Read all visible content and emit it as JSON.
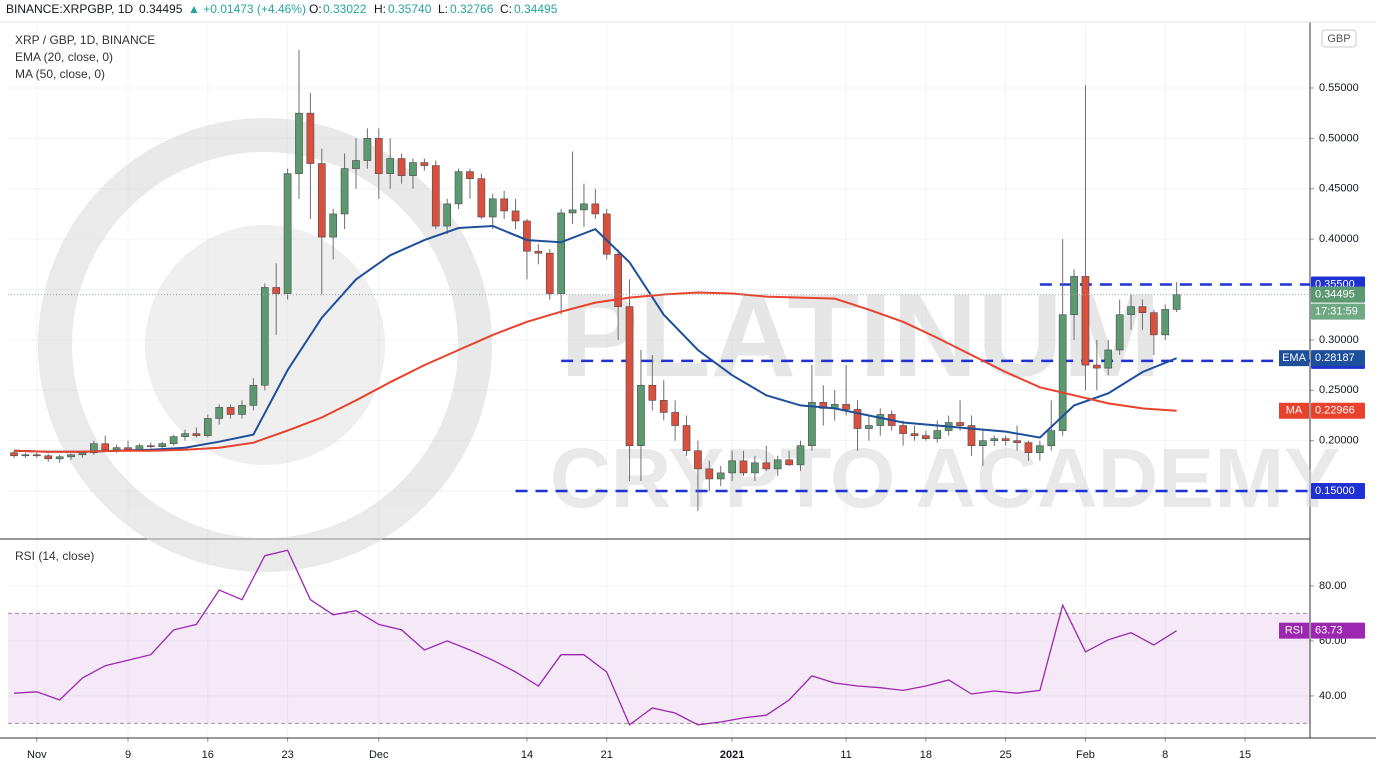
{
  "header": {
    "symbol": "BINANCE:XRPGBP, 1D",
    "price": "0.34495",
    "change": "▲ +0.01473 (+4.46%)",
    "o": "O:",
    "o_value": "0.33022",
    "h": "H:",
    "h_value": "0.35740",
    "l": "L:",
    "l_value": "0.32766",
    "c": "C:",
    "c_value": "0.34495"
  },
  "chart_data": [
    {
      "type": "candlestick",
      "title": "XRP / GBP, 1D, BINANCE",
      "currency": "GBP",
      "watermark": [
        "PLATINUM",
        "CRYPTO ACADEMY"
      ],
      "up_color": "#5d9970",
      "down_color": "#d9503f",
      "wick_color": "#6f6f73",
      "xlim": [
        -0.53,
        113.7
      ],
      "ylim": [
        0.1034,
        0.6125
      ],
      "yticks": [
        {
          "value": 0.15,
          "label": "0.15000"
        },
        {
          "value": 0.2,
          "label": "0.20000"
        },
        {
          "value": 0.25,
          "label": "0.25000"
        },
        {
          "value": 0.3,
          "label": "0.30000"
        },
        {
          "value": 0.35,
          "label": "0.35000"
        },
        {
          "value": 0.4,
          "label": "0.40000"
        },
        {
          "value": 0.45,
          "label": "0.45000"
        },
        {
          "value": 0.5,
          "label": "0.50000"
        },
        {
          "value": 0.55,
          "label": "0.55000"
        }
      ],
      "xticks": [
        {
          "value": 2,
          "label": "Nov"
        },
        {
          "value": 10,
          "label": "9"
        },
        {
          "value": 17,
          "label": "16"
        },
        {
          "value": 24,
          "label": "23"
        },
        {
          "value": 32,
          "label": "Dec"
        },
        {
          "value": 45,
          "label": "14"
        },
        {
          "value": 52,
          "label": "21"
        },
        {
          "value": 63,
          "label": "2021"
        },
        {
          "value": 73,
          "label": "11"
        },
        {
          "value": 80,
          "label": "18"
        },
        {
          "value": 87,
          "label": "25"
        },
        {
          "value": 94,
          "label": "Feb"
        },
        {
          "value": 101,
          "label": "8"
        },
        {
          "value": 108,
          "label": "15"
        }
      ],
      "ohlc": [
        [
          0.188,
          0.19,
          0.183,
          0.185
        ],
        [
          0.185,
          0.188,
          0.183,
          0.186
        ],
        [
          0.186,
          0.188,
          0.183,
          0.185
        ],
        [
          0.185,
          0.187,
          0.179,
          0.182
        ],
        [
          0.182,
          0.186,
          0.178,
          0.184
        ],
        [
          0.184,
          0.187,
          0.181,
          0.186
        ],
        [
          0.186,
          0.19,
          0.183,
          0.188
        ],
        [
          0.188,
          0.2,
          0.186,
          0.197
        ],
        [
          0.197,
          0.205,
          0.19,
          0.191
        ],
        [
          0.191,
          0.196,
          0.188,
          0.193
        ],
        [
          0.193,
          0.2,
          0.19,
          0.191
        ],
        [
          0.191,
          0.197,
          0.189,
          0.195
        ],
        [
          0.195,
          0.198,
          0.192,
          0.194
        ],
        [
          0.194,
          0.199,
          0.192,
          0.197
        ],
        [
          0.197,
          0.206,
          0.195,
          0.204
        ],
        [
          0.204,
          0.211,
          0.2,
          0.207
        ],
        [
          0.207,
          0.213,
          0.203,
          0.205
        ],
        [
          0.205,
          0.226,
          0.203,
          0.222
        ],
        [
          0.222,
          0.236,
          0.216,
          0.233
        ],
        [
          0.233,
          0.236,
          0.222,
          0.226
        ],
        [
          0.226,
          0.24,
          0.222,
          0.235
        ],
        [
          0.235,
          0.262,
          0.23,
          0.255
        ],
        [
          0.255,
          0.356,
          0.25,
          0.352
        ],
        [
          0.352,
          0.376,
          0.305,
          0.346
        ],
        [
          0.346,
          0.47,
          0.34,
          0.465
        ],
        [
          0.465,
          0.588,
          0.44,
          0.525
        ],
        [
          0.525,
          0.545,
          0.42,
          0.475
        ],
        [
          0.475,
          0.49,
          0.345,
          0.402
        ],
        [
          0.402,
          0.43,
          0.38,
          0.425
        ],
        [
          0.425,
          0.485,
          0.41,
          0.47
        ],
        [
          0.47,
          0.5,
          0.45,
          0.478
        ],
        [
          0.478,
          0.51,
          0.47,
          0.5
        ],
        [
          0.5,
          0.51,
          0.44,
          0.465
        ],
        [
          0.465,
          0.5,
          0.45,
          0.48
        ],
        [
          0.48,
          0.485,
          0.455,
          0.463
        ],
        [
          0.463,
          0.48,
          0.45,
          0.476
        ],
        [
          0.476,
          0.48,
          0.468,
          0.473
        ],
        [
          0.473,
          0.478,
          0.41,
          0.413
        ],
        [
          0.413,
          0.44,
          0.405,
          0.435
        ],
        [
          0.435,
          0.47,
          0.43,
          0.467
        ],
        [
          0.467,
          0.47,
          0.44,
          0.46
        ],
        [
          0.46,
          0.465,
          0.42,
          0.422
        ],
        [
          0.422,
          0.445,
          0.41,
          0.44
        ],
        [
          0.44,
          0.448,
          0.42,
          0.428
        ],
        [
          0.428,
          0.44,
          0.41,
          0.418
        ],
        [
          0.418,
          0.42,
          0.36,
          0.388
        ],
        [
          0.388,
          0.395,
          0.375,
          0.386
        ],
        [
          0.386,
          0.39,
          0.34,
          0.346
        ],
        [
          0.346,
          0.43,
          0.325,
          0.426
        ],
        [
          0.426,
          0.487,
          0.415,
          0.429
        ],
        [
          0.429,
          0.455,
          0.412,
          0.435
        ],
        [
          0.435,
          0.45,
          0.42,
          0.425
        ],
        [
          0.425,
          0.43,
          0.38,
          0.385
        ],
        [
          0.385,
          0.39,
          0.3,
          0.333
        ],
        [
          0.333,
          0.36,
          0.16,
          0.195
        ],
        [
          0.195,
          0.29,
          0.16,
          0.255
        ],
        [
          0.255,
          0.285,
          0.23,
          0.24
        ],
        [
          0.24,
          0.26,
          0.22,
          0.228
        ],
        [
          0.228,
          0.24,
          0.2,
          0.215
        ],
        [
          0.215,
          0.225,
          0.185,
          0.19
        ],
        [
          0.19,
          0.2,
          0.13,
          0.172
        ],
        [
          0.172,
          0.18,
          0.15,
          0.162
        ],
        [
          0.162,
          0.175,
          0.155,
          0.168
        ],
        [
          0.168,
          0.19,
          0.16,
          0.18
        ],
        [
          0.18,
          0.19,
          0.165,
          0.168
        ],
        [
          0.168,
          0.185,
          0.16,
          0.178
        ],
        [
          0.178,
          0.195,
          0.17,
          0.172
        ],
        [
          0.172,
          0.185,
          0.165,
          0.181
        ],
        [
          0.181,
          0.19,
          0.175,
          0.176
        ],
        [
          0.176,
          0.2,
          0.17,
          0.195
        ],
        [
          0.195,
          0.275,
          0.19,
          0.238
        ],
        [
          0.238,
          0.255,
          0.215,
          0.232
        ],
        [
          0.232,
          0.25,
          0.22,
          0.236
        ],
        [
          0.236,
          0.275,
          0.225,
          0.231
        ],
        [
          0.231,
          0.24,
          0.19,
          0.212
        ],
        [
          0.212,
          0.225,
          0.2,
          0.215
        ],
        [
          0.215,
          0.232,
          0.205,
          0.226
        ],
        [
          0.226,
          0.23,
          0.21,
          0.215
        ],
        [
          0.215,
          0.22,
          0.195,
          0.207
        ],
        [
          0.207,
          0.215,
          0.2,
          0.205
        ],
        [
          0.205,
          0.21,
          0.2,
          0.202
        ],
        [
          0.202,
          0.22,
          0.198,
          0.21
        ],
        [
          0.21,
          0.225,
          0.205,
          0.218
        ],
        [
          0.218,
          0.24,
          0.21,
          0.215
        ],
        [
          0.215,
          0.225,
          0.185,
          0.195
        ],
        [
          0.195,
          0.21,
          0.175,
          0.2
        ],
        [
          0.2,
          0.205,
          0.195,
          0.202
        ],
        [
          0.202,
          0.205,
          0.195,
          0.2
        ],
        [
          0.2,
          0.215,
          0.19,
          0.198
        ],
        [
          0.198,
          0.2,
          0.18,
          0.188
        ],
        [
          0.188,
          0.2,
          0.18,
          0.195
        ],
        [
          0.195,
          0.24,
          0.19,
          0.21
        ],
        [
          0.21,
          0.4,
          0.205,
          0.325
        ],
        [
          0.325,
          0.37,
          0.3,
          0.363
        ],
        [
          0.363,
          0.553,
          0.25,
          0.275
        ],
        [
          0.275,
          0.3,
          0.25,
          0.272
        ],
        [
          0.272,
          0.3,
          0.265,
          0.29
        ],
        [
          0.29,
          0.34,
          0.285,
          0.325
        ],
        [
          0.325,
          0.345,
          0.31,
          0.333
        ],
        [
          0.333,
          0.34,
          0.31,
          0.327
        ],
        [
          0.327,
          0.33,
          0.285,
          0.305
        ],
        [
          0.305,
          0.335,
          0.3,
          0.33022
        ],
        [
          0.33022,
          0.3574,
          0.32766,
          0.34495
        ]
      ],
      "series": [
        {
          "name": "EMA (20, close, 0)",
          "short": "EMA",
          "color": "#1e4f9a",
          "x": [
            0,
            3,
            6,
            9,
            12,
            15,
            18,
            21,
            24,
            27,
            30,
            33,
            36,
            39,
            42,
            45,
            48,
            51,
            54,
            57,
            60,
            63,
            66,
            69,
            72,
            75,
            78,
            81,
            84,
            87,
            90,
            93,
            96,
            99,
            102
          ],
          "values": [
            0.19,
            0.189,
            0.189,
            0.19,
            0.191,
            0.193,
            0.199,
            0.206,
            0.27,
            0.322,
            0.36,
            0.384,
            0.399,
            0.411,
            0.413,
            0.399,
            0.397,
            0.41,
            0.377,
            0.325,
            0.29,
            0.265,
            0.245,
            0.235,
            0.232,
            0.225,
            0.218,
            0.215,
            0.212,
            0.209,
            0.203,
            0.235,
            0.247,
            0.268,
            0.28187
          ]
        },
        {
          "name": "MA (50, close, 0)",
          "short": "MA",
          "color": "#e8412c",
          "x": [
            0,
            3,
            6,
            9,
            12,
            15,
            18,
            21,
            24,
            27,
            30,
            33,
            36,
            39,
            42,
            45,
            48,
            51,
            54,
            57,
            60,
            63,
            66,
            69,
            72,
            75,
            78,
            81,
            84,
            87,
            90,
            93,
            96,
            99,
            102
          ],
          "values": [
            0.19,
            0.189,
            0.189,
            0.19,
            0.19,
            0.191,
            0.193,
            0.198,
            0.21,
            0.223,
            0.24,
            0.258,
            0.275,
            0.29,
            0.305,
            0.318,
            0.328,
            0.337,
            0.342,
            0.345,
            0.347,
            0.346,
            0.343,
            0.342,
            0.341,
            0.33,
            0.318,
            0.302,
            0.285,
            0.268,
            0.253,
            0.245,
            0.237,
            0.232,
            0.22966
          ]
        }
      ],
      "levels": [
        {
          "value": 0.355,
          "label": "0.35500",
          "from": 90
        },
        {
          "value": 0.27916,
          "from": 48
        },
        {
          "value": 0.15,
          "label": "0.15000",
          "from": 44
        }
      ],
      "level_color": "#1f31d2",
      "countdown": "17:31:59"
    },
    {
      "type": "line",
      "title": "RSI (14, close)",
      "xlim": [
        -0.53,
        113.7
      ],
      "ylim": [
        24.7,
        96.7
      ],
      "yticks": [
        {
          "value": 40,
          "label": "40.00"
        },
        {
          "value": 60,
          "label": "60.00"
        },
        {
          "value": 80,
          "label": "80.00"
        }
      ],
      "band": [
        30,
        70
      ],
      "band_color": "#9c27b0",
      "series": [
        {
          "name": "RSI",
          "color": "#9c27b0",
          "x": [
            0,
            2,
            4,
            6,
            8,
            10,
            12,
            14,
            16,
            18,
            20,
            22,
            24,
            26,
            28,
            30,
            32,
            34,
            36,
            38,
            40,
            42,
            44,
            46,
            48,
            50,
            52,
            54,
            56,
            58,
            60,
            62,
            64,
            66,
            68,
            70,
            72,
            74,
            76,
            78,
            80,
            82,
            84,
            86,
            88,
            90,
            92,
            94,
            96,
            98,
            100,
            102
          ],
          "values": [
            41,
            41.5,
            38.5,
            46.5,
            51,
            53,
            55,
            64,
            66,
            78.5,
            75,
            91,
            93,
            75,
            69.5,
            71,
            66,
            64,
            56.7,
            60,
            56.7,
            53,
            48.7,
            43.6,
            55,
            55,
            48.7,
            29.5,
            35.6,
            33.8,
            29.5,
            30.5,
            32,
            33,
            38.5,
            47.3,
            44.7,
            43.6,
            43,
            42,
            43.6,
            45.8,
            40.7,
            41.8,
            41,
            42,
            73,
            56,
            60.4,
            63,
            58.5,
            63.73
          ]
        }
      ]
    }
  ]
}
